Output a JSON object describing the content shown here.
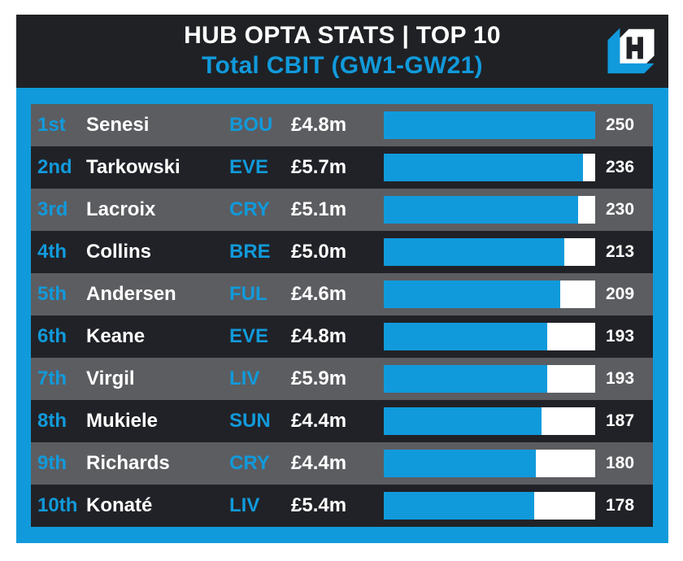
{
  "header": {
    "title": "HUB OPTA STATS | TOP 10",
    "subtitle": "Total CBIT (GW1-GW21)",
    "logo": "hub-logo"
  },
  "colors": {
    "accent": "#119adb",
    "header_bg": "#1f2125",
    "row_dark": "#212227",
    "row_gray": "#5c5d61",
    "bar_track": "#ffffff",
    "text": "#ffffff"
  },
  "rows": [
    {
      "rank": "1st",
      "name": "Senesi",
      "team": "BOU",
      "price": "£4.8m",
      "value": 250
    },
    {
      "rank": "2nd",
      "name": "Tarkowski",
      "team": "EVE",
      "price": "£5.7m",
      "value": 236
    },
    {
      "rank": "3rd",
      "name": "Lacroix",
      "team": "CRY",
      "price": "£5.1m",
      "value": 230
    },
    {
      "rank": "4th",
      "name": "Collins",
      "team": "BRE",
      "price": "£5.0m",
      "value": 213
    },
    {
      "rank": "5th",
      "name": "Andersen",
      "team": "FUL",
      "price": "£4.6m",
      "value": 209
    },
    {
      "rank": "6th",
      "name": "Keane",
      "team": "EVE",
      "price": "£4.8m",
      "value": 193
    },
    {
      "rank": "7th",
      "name": "Virgil",
      "team": "LIV",
      "price": "£5.9m",
      "value": 193
    },
    {
      "rank": "8th",
      "name": "Mukiele",
      "team": "SUN",
      "price": "£4.4m",
      "value": 187
    },
    {
      "rank": "9th",
      "name": "Richards",
      "team": "CRY",
      "price": "£4.4m",
      "value": 180
    },
    {
      "rank": "10th",
      "name": "Konaté",
      "team": "LIV",
      "price": "£5.4m",
      "value": 178
    }
  ],
  "chart_data": {
    "type": "bar",
    "orientation": "horizontal",
    "title": "HUB OPTA STATS | TOP 10",
    "subtitle": "Total CBIT (GW1-GW21)",
    "categories": [
      "Senesi",
      "Tarkowski",
      "Lacroix",
      "Collins",
      "Andersen",
      "Keane",
      "Virgil",
      "Mukiele",
      "Richards",
      "Konaté"
    ],
    "values": [
      250,
      236,
      230,
      213,
      209,
      193,
      193,
      187,
      180,
      178
    ],
    "teams": [
      "BOU",
      "EVE",
      "CRY",
      "BRE",
      "FUL",
      "EVE",
      "LIV",
      "SUN",
      "CRY",
      "LIV"
    ],
    "prices": [
      "£4.8m",
      "£5.7m",
      "£5.1m",
      "£5.0m",
      "£4.6m",
      "£4.8m",
      "£5.9m",
      "£4.4m",
      "£4.4m",
      "£5.4m"
    ],
    "xlim": [
      0,
      250
    ],
    "value_labels_shown": true,
    "grid": false,
    "legend": false
  }
}
